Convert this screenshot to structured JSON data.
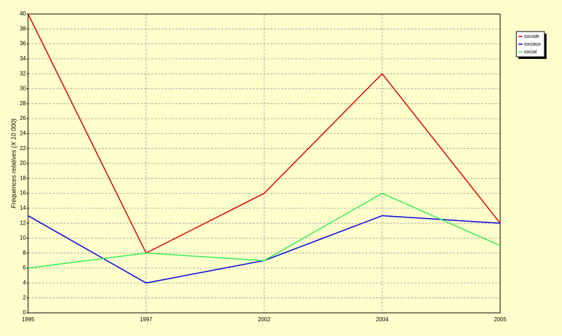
{
  "chart_data": {
    "type": "line",
    "y_label": "Fréquences relatives (X 10 000)",
    "categories": [
      "1995",
      "1997",
      "2002",
      "2004",
      "2005"
    ],
    "series": [
      {
        "name": "sociale",
        "color": "#dd0000",
        "values": [
          40,
          8,
          16,
          32,
          12
        ]
      },
      {
        "name": "sociaux",
        "color": "#0000dd",
        "values": [
          13,
          4,
          7,
          13,
          12
        ]
      },
      {
        "name": "social",
        "color": "#33ee55",
        "values": [
          6,
          8,
          7,
          16,
          9
        ]
      }
    ],
    "ylim": [
      0,
      40
    ],
    "yticks": [
      0,
      2,
      4,
      6,
      8,
      10,
      12,
      14,
      16,
      18,
      20,
      22,
      24,
      26,
      28,
      30,
      32,
      34,
      36,
      38,
      40
    ],
    "grid": true,
    "legend": "right"
  }
}
